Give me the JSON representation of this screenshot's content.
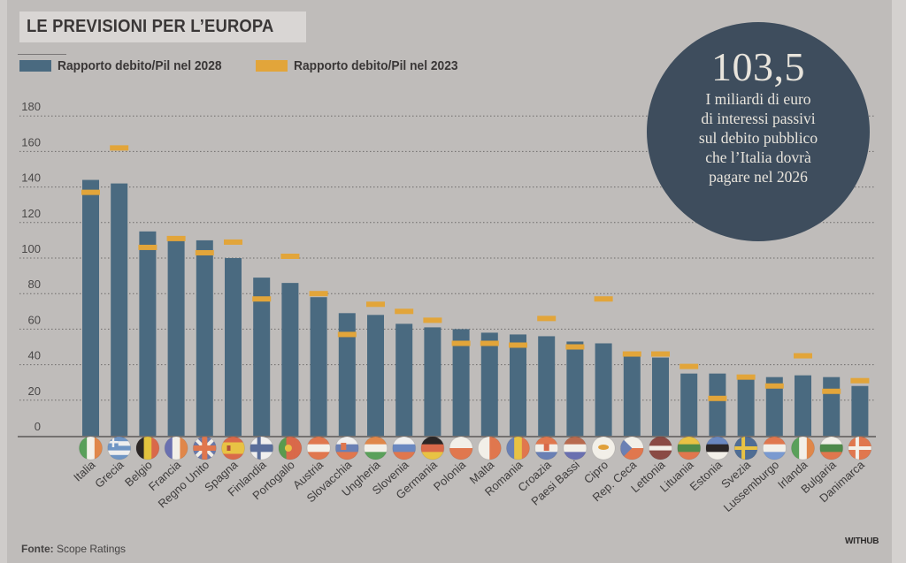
{
  "chart_data": {
    "type": "bar",
    "title": "LE PREVISIONI PER L'EUROPA",
    "xlabel": "",
    "ylabel": "",
    "ylim": [
      0,
      180
    ],
    "yticks": [
      0,
      20,
      40,
      60,
      80,
      100,
      120,
      140,
      160,
      180
    ],
    "grid": true,
    "legend_placement": "top-left",
    "categories": [
      "Italia",
      "Grecia",
      "Belgio",
      "Francia",
      "Regno Unito",
      "Spagna",
      "Finlandia",
      "Portogallo",
      "Austria",
      "Slovacchia",
      "Ungheria",
      "Slovenia",
      "Germania",
      "Polonia",
      "Malta",
      "Romania",
      "Croazia",
      "Paesi Bassi",
      "Cipro",
      "Rep. Ceca",
      "Lettonia",
      "Lituania",
      "Estonia",
      "Svezia",
      "Lussemburgo",
      "Irlanda",
      "Bulgaria",
      "Danimarca"
    ],
    "series": [
      {
        "name": "Rapporto debito/Pil nel 2028",
        "type": "bar",
        "color": "#4a6a80",
        "values": [
          144,
          142,
          115,
          112,
          110,
          100,
          89,
          86,
          78,
          69,
          68,
          63,
          61,
          60,
          58,
          57,
          56,
          53,
          52,
          45,
          44,
          35,
          35,
          33,
          33,
          34,
          33,
          28
        ]
      },
      {
        "name": "Rapporto debito/Pil nel 2023",
        "type": "marker",
        "color": "#e2a53a",
        "values": [
          137,
          162,
          106,
          111,
          103,
          109,
          77,
          101,
          80,
          57,
          74,
          70,
          65,
          52,
          52,
          51,
          66,
          50,
          77,
          46,
          46,
          39,
          21,
          33,
          28,
          45,
          25,
          31
        ]
      }
    ]
  },
  "header": {
    "title": "LE PREVISIONI PER L’EUROPA"
  },
  "legend": [
    {
      "label": "Rapporto debito/Pil nel 2028",
      "color": "#4a6a80"
    },
    {
      "label": "Rapporto debito/Pil nel 2023",
      "color": "#e2a53a"
    }
  ],
  "flags": [
    {
      "country": "Italia",
      "icon": "italy-flag-icon"
    },
    {
      "country": "Grecia",
      "icon": "greece-flag-icon"
    },
    {
      "country": "Belgio",
      "icon": "belgium-flag-icon"
    },
    {
      "country": "Francia",
      "icon": "france-flag-icon"
    },
    {
      "country": "Regno Unito",
      "icon": "uk-flag-icon"
    },
    {
      "country": "Spagna",
      "icon": "spain-flag-icon"
    },
    {
      "country": "Finlandia",
      "icon": "finland-flag-icon"
    },
    {
      "country": "Portogallo",
      "icon": "portugal-flag-icon"
    },
    {
      "country": "Austria",
      "icon": "austria-flag-icon"
    },
    {
      "country": "Slovacchia",
      "icon": "slovakia-flag-icon"
    },
    {
      "country": "Ungheria",
      "icon": "hungary-flag-icon"
    },
    {
      "country": "Slovenia",
      "icon": "slovenia-flag-icon"
    },
    {
      "country": "Germania",
      "icon": "germany-flag-icon"
    },
    {
      "country": "Polonia",
      "icon": "poland-flag-icon"
    },
    {
      "country": "Malta",
      "icon": "malta-flag-icon"
    },
    {
      "country": "Romania",
      "icon": "romania-flag-icon"
    },
    {
      "country": "Croazia",
      "icon": "croatia-flag-icon"
    },
    {
      "country": "Paesi Bassi",
      "icon": "netherlands-flag-icon"
    },
    {
      "country": "Cipro",
      "icon": "cyprus-flag-icon"
    },
    {
      "country": "Rep. Ceca",
      "icon": "czech-flag-icon"
    },
    {
      "country": "Lettonia",
      "icon": "latvia-flag-icon"
    },
    {
      "country": "Lituania",
      "icon": "lithuania-flag-icon"
    },
    {
      "country": "Estonia",
      "icon": "estonia-flag-icon"
    },
    {
      "country": "Svezia",
      "icon": "sweden-flag-icon"
    },
    {
      "country": "Lussemburgo",
      "icon": "luxembourg-flag-icon"
    },
    {
      "country": "Irlanda",
      "icon": "ireland-flag-icon"
    },
    {
      "country": "Bulgaria",
      "icon": "bulgaria-flag-icon"
    },
    {
      "country": "Danimarca",
      "icon": "denmark-flag-icon"
    }
  ],
  "callout": {
    "number": "103,5",
    "lines": [
      "I miliardi di euro",
      "di interessi passivi",
      "sul debito pubblico",
      "che l’Italia dovrà",
      "pagare nel 2026"
    ]
  },
  "footer": {
    "source_label": "Fonte:",
    "source_value": "Scope Ratings",
    "brand": "WITHUB"
  }
}
